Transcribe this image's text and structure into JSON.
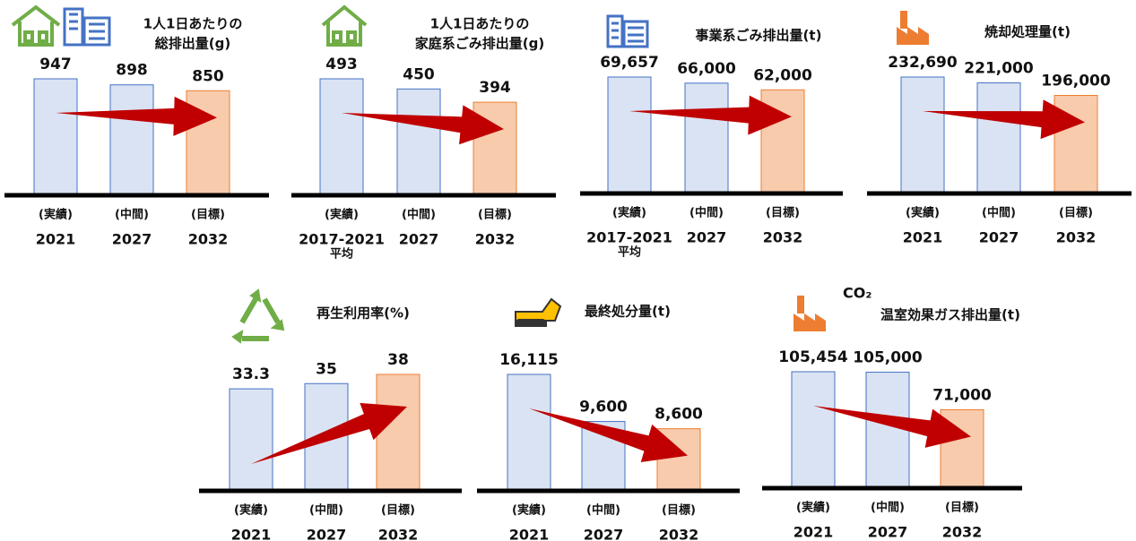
{
  "chart_data": [
    {
      "type": "bar",
      "title": [
        "1人1日あたりの",
        "総排出量(g)"
      ],
      "categories": [
        [
          "(実績)",
          "2021"
        ],
        [
          "(中間)",
          "2027"
        ],
        [
          "(目標)",
          "2032"
        ]
      ],
      "values": [
        947,
        898,
        850
      ],
      "colors": [
        "#dae3f3",
        "#dae3f3",
        "#f8cbad"
      ]
    },
    {
      "type": "bar",
      "title": [
        "1人1日あたりの",
        "家庭系ごみ排出量(g)"
      ],
      "categories": [
        [
          "(実績)",
          "2017-2021",
          "平均"
        ],
        [
          "(中間)",
          "2027"
        ],
        [
          "(目標)",
          "2032"
        ]
      ],
      "values": [
        493,
        450,
        394
      ],
      "colors": [
        "#dae3f3",
        "#dae3f3",
        "#f8cbad"
      ]
    },
    {
      "type": "bar",
      "title": [
        "事業系ごみ排出量(t)"
      ],
      "categories": [
        [
          "(実績)",
          "2017-2021",
          "平均"
        ],
        [
          "(中間)",
          "2027"
        ],
        [
          "(目標)",
          "2032"
        ]
      ],
      "values": [
        69657,
        66000,
        62000
      ],
      "value_labels": [
        "69,657",
        "66,000",
        "62,000"
      ],
      "colors": [
        "#dae3f3",
        "#dae3f3",
        "#f8cbad"
      ]
    },
    {
      "type": "bar",
      "title": [
        "焼却処理量(t)"
      ],
      "categories": [
        [
          "(実績)",
          "2021"
        ],
        [
          "(中間)",
          "2027"
        ],
        [
          "(目標)",
          "2032"
        ]
      ],
      "values": [
        232690,
        221000,
        196000
      ],
      "value_labels": [
        "232,690",
        "221,000",
        "196,000"
      ],
      "colors": [
        "#dae3f3",
        "#dae3f3",
        "#f8cbad"
      ]
    },
    {
      "type": "bar",
      "title": [
        "再生利用率(%)"
      ],
      "categories": [
        [
          "(実績)",
          "2021"
        ],
        [
          "(中間)",
          "2027"
        ],
        [
          "(目標)",
          "2032"
        ]
      ],
      "values": [
        33.3,
        35,
        38
      ],
      "colors": [
        "#dae3f3",
        "#dae3f3",
        "#f8cbad"
      ]
    },
    {
      "type": "bar",
      "title": [
        "最終処分量(t)"
      ],
      "categories": [
        [
          "(実績)",
          "2021"
        ],
        [
          "(中間)",
          "2027"
        ],
        [
          "(目標)",
          "2032"
        ]
      ],
      "values": [
        16115,
        9600,
        8600
      ],
      "value_labels": [
        "16,115",
        "9,600",
        "8,600"
      ],
      "colors": [
        "#dae3f3",
        "#dae3f3",
        "#f8cbad"
      ]
    },
    {
      "type": "bar",
      "title": [
        "温室効果ガス排出量(t)"
      ],
      "icon_text": "CO₂",
      "categories": [
        [
          "(実績)",
          "2021"
        ],
        [
          "(中間)",
          "2027"
        ],
        [
          "(目標)",
          "2032"
        ]
      ],
      "values": [
        105454,
        105000,
        71000
      ],
      "value_labels": [
        "105,454",
        "105,000",
        "71,000"
      ],
      "colors": [
        "#dae3f3",
        "#dae3f3",
        "#f8cbad"
      ]
    }
  ]
}
